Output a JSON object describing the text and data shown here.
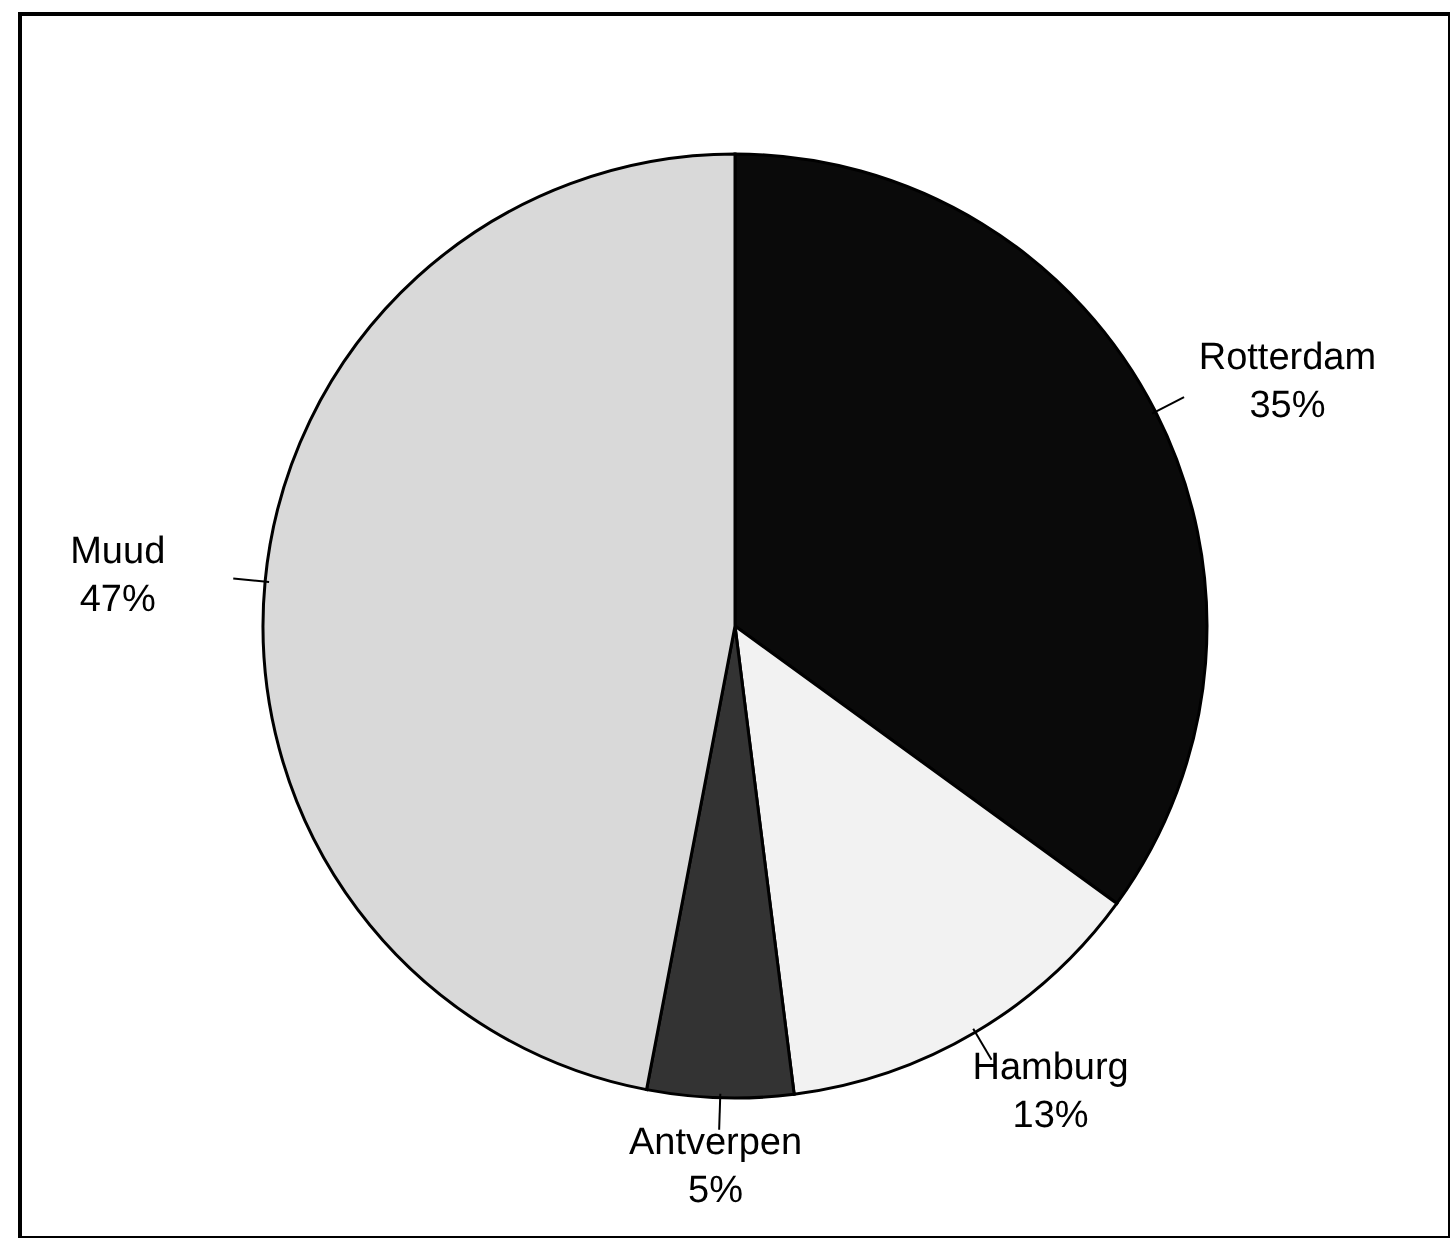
{
  "chart_data": {
    "type": "pie",
    "categories": [
      "Rotterdam",
      "Hamburg",
      "Antverpen",
      "Muud"
    ],
    "values": [
      35,
      13,
      5,
      47
    ],
    "colors": [
      "#0a0a0a",
      "#f2f2f2",
      "#333333",
      "#d9d9d9"
    ],
    "value_labels": [
      "35%",
      "13%",
      "5%",
      "47%"
    ]
  }
}
